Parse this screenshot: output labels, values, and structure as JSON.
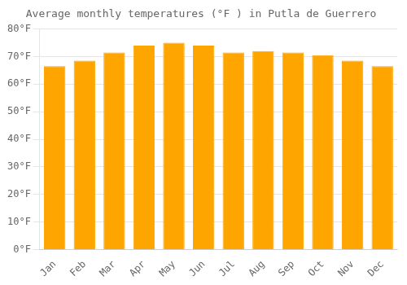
{
  "chart_data": {
    "type": "bar",
    "title": "Average monthly temperatures (°F ) in Putla de Guerrero",
    "categories": [
      "Jan",
      "Feb",
      "Mar",
      "Apr",
      "May",
      "Jun",
      "Jul",
      "Aug",
      "Sep",
      "Oct",
      "Nov",
      "Dec"
    ],
    "values": [
      66.5,
      68.5,
      71.5,
      74.0,
      75.0,
      74.0,
      71.5,
      72.0,
      71.5,
      70.5,
      68.5,
      66.5
    ],
    "color": "#FFA500",
    "ylim": [
      0,
      80
    ],
    "yticks": [
      {
        "value": 0,
        "label": "0°F"
      },
      {
        "value": 10,
        "label": "10°F"
      },
      {
        "value": 20,
        "label": "20°F"
      },
      {
        "value": 30,
        "label": "30°F"
      },
      {
        "value": 40,
        "label": "40°F"
      },
      {
        "value": 50,
        "label": "50°F"
      },
      {
        "value": 60,
        "label": "60°F"
      },
      {
        "value": 70,
        "label": "70°F"
      },
      {
        "value": 80,
        "label": "80°F"
      }
    ],
    "grid": true
  }
}
